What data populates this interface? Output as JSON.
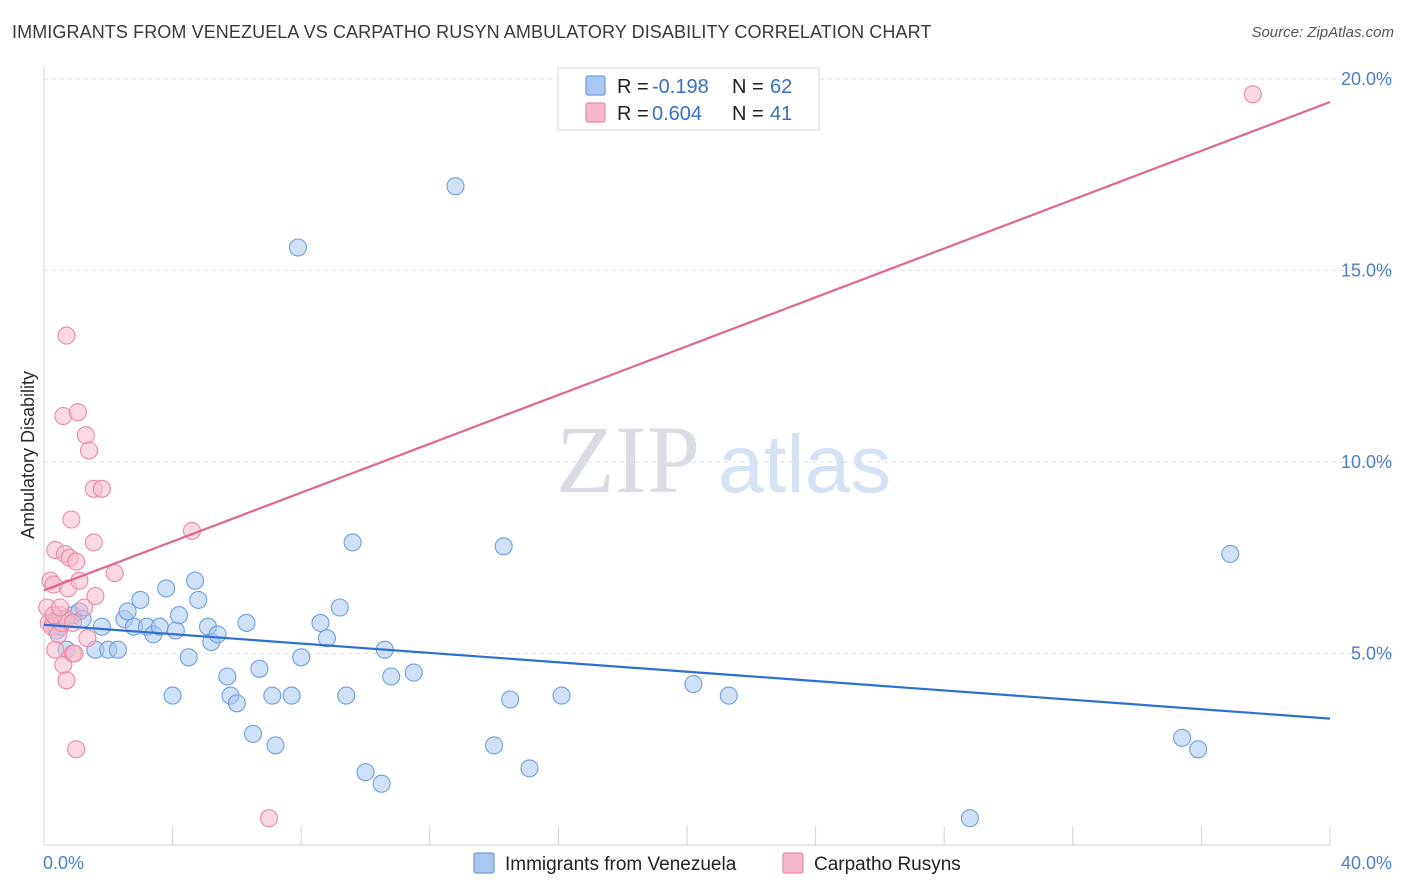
{
  "header": {
    "title": "IMMIGRANTS FROM VENEZUELA VS CARPATHO RUSYN AMBULATORY DISABILITY CORRELATION CHART",
    "source": "Source: ZipAtlas.com"
  },
  "watermark": {
    "zip": "ZIP",
    "atlas": "atlas"
  },
  "stats": [
    {
      "r_label": "R =",
      "r_value": "-0.198",
      "n_label": "N =",
      "n_value": "62"
    },
    {
      "r_label": "R =",
      "r_value": "0.604",
      "n_label": "N =",
      "n_value": "41"
    }
  ],
  "colors": {
    "blue_fill": "#a9c8f0",
    "blue_stroke": "#6e9fe0",
    "blue_line": "#2f6fd0",
    "pink_fill": "#f6b9cb",
    "pink_stroke": "#ea8aa8",
    "pink_line": "#e06890",
    "tick_text": "#4a7ec8",
    "grid": "#dde2ea"
  },
  "chart_data": {
    "type": "scatter",
    "title": "IMMIGRANTS FROM VENEZUELA VS CARPATHO RUSYN AMBULATORY DISABILITY CORRELATION CHART",
    "xlabel": "",
    "ylabel": "Ambulatory Disability",
    "xlim": [
      0,
      40
    ],
    "ylim": [
      0,
      20
    ],
    "x_tick_labels": [
      "0.0%",
      "40.0%"
    ],
    "y_ticks": [
      5,
      10,
      15,
      20
    ],
    "y_tick_labels": [
      "5.0%",
      "10.0%",
      "15.0%",
      "20.0%"
    ],
    "grid": true,
    "legend_position": "bottom",
    "series": [
      {
        "name": "Immigrants from Venezuela",
        "color": "#a9c8f0",
        "trend": {
          "x": [
            0,
            40
          ],
          "y": [
            5.75,
            3.3
          ]
        },
        "points": [
          [
            0.3,
            5.8
          ],
          [
            0.4,
            5.6
          ],
          [
            0.5,
            5.7
          ],
          [
            0.6,
            5.9
          ],
          [
            0.7,
            5.1
          ],
          [
            0.9,
            6.0
          ],
          [
            1.1,
            6.1
          ],
          [
            1.2,
            5.9
          ],
          [
            1.6,
            5.1
          ],
          [
            1.8,
            5.7
          ],
          [
            2.0,
            5.1
          ],
          [
            2.3,
            5.1
          ],
          [
            2.5,
            5.9
          ],
          [
            2.6,
            6.1
          ],
          [
            2.8,
            5.7
          ],
          [
            3.0,
            6.4
          ],
          [
            3.2,
            5.7
          ],
          [
            3.4,
            5.5
          ],
          [
            3.6,
            5.7
          ],
          [
            3.8,
            6.7
          ],
          [
            4.0,
            3.9
          ],
          [
            4.1,
            5.6
          ],
          [
            4.2,
            6.0
          ],
          [
            4.5,
            4.9
          ],
          [
            4.7,
            6.9
          ],
          [
            4.8,
            6.4
          ],
          [
            5.1,
            5.7
          ],
          [
            5.2,
            5.3
          ],
          [
            5.4,
            5.5
          ],
          [
            5.7,
            4.4
          ],
          [
            5.8,
            3.9
          ],
          [
            6.0,
            3.7
          ],
          [
            6.3,
            5.8
          ],
          [
            6.5,
            2.9
          ],
          [
            6.7,
            4.6
          ],
          [
            7.1,
            3.9
          ],
          [
            7.2,
            2.6
          ],
          [
            7.7,
            3.9
          ],
          [
            7.9,
            15.6
          ],
          [
            8.0,
            4.9
          ],
          [
            8.6,
            5.8
          ],
          [
            8.8,
            5.4
          ],
          [
            9.2,
            6.2
          ],
          [
            9.4,
            3.9
          ],
          [
            9.6,
            7.9
          ],
          [
            10.0,
            1.9
          ],
          [
            10.5,
            1.6
          ],
          [
            10.6,
            5.1
          ],
          [
            10.8,
            4.4
          ],
          [
            11.5,
            4.5
          ],
          [
            12.8,
            17.2
          ],
          [
            14.0,
            2.6
          ],
          [
            14.3,
            7.8
          ],
          [
            14.5,
            3.8
          ],
          [
            15.1,
            2.0
          ],
          [
            16.1,
            3.9
          ],
          [
            20.2,
            4.2
          ],
          [
            21.3,
            3.9
          ],
          [
            28.8,
            0.7
          ],
          [
            35.4,
            2.8
          ],
          [
            35.9,
            2.5
          ],
          [
            36.9,
            7.6
          ]
        ]
      },
      {
        "name": "Carpatho Rusyns",
        "color": "#f6b9cb",
        "trend": {
          "x": [
            0,
            40
          ],
          "y": [
            6.65,
            19.4
          ]
        },
        "points": [
          [
            0.1,
            6.2
          ],
          [
            0.15,
            5.8
          ],
          [
            0.2,
            6.9
          ],
          [
            0.25,
            5.7
          ],
          [
            0.3,
            6.8
          ],
          [
            0.35,
            7.7
          ],
          [
            0.35,
            5.1
          ],
          [
            0.4,
            5.9
          ],
          [
            0.45,
            5.5
          ],
          [
            0.5,
            6.0
          ],
          [
            0.55,
            5.8
          ],
          [
            0.6,
            11.2
          ],
          [
            0.6,
            4.7
          ],
          [
            0.65,
            7.6
          ],
          [
            0.7,
            13.3
          ],
          [
            0.7,
            5.9
          ],
          [
            0.7,
            4.3
          ],
          [
            0.75,
            6.7
          ],
          [
            0.8,
            7.5
          ],
          [
            0.85,
            8.5
          ],
          [
            0.9,
            5.8
          ],
          [
            0.9,
            5.0
          ],
          [
            0.95,
            5.0
          ],
          [
            1.0,
            2.5
          ],
          [
            1.0,
            7.4
          ],
          [
            1.05,
            11.3
          ],
          [
            1.1,
            6.9
          ],
          [
            1.25,
            6.2
          ],
          [
            1.3,
            10.7
          ],
          [
            1.35,
            5.4
          ],
          [
            1.4,
            10.3
          ],
          [
            1.55,
            7.9
          ],
          [
            1.55,
            9.3
          ],
          [
            1.6,
            6.5
          ],
          [
            1.8,
            9.3
          ],
          [
            2.2,
            7.1
          ],
          [
            4.6,
            8.2
          ],
          [
            7.0,
            0.7
          ],
          [
            37.6,
            19.6
          ],
          [
            0.3,
            6.0
          ],
          [
            0.5,
            6.2
          ]
        ]
      }
    ]
  }
}
